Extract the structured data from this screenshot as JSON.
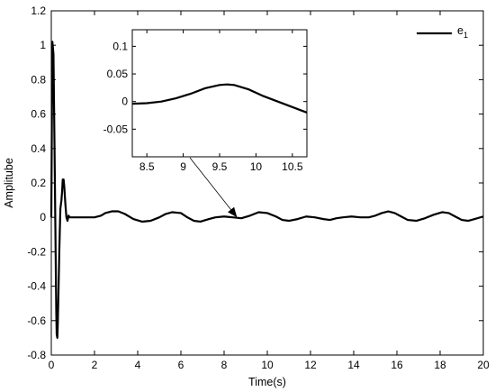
{
  "chart_data": {
    "type": "line",
    "xlabel": "Time(s)",
    "ylabel": "Amplitube",
    "xlim": [
      0,
      20
    ],
    "ylim": [
      -0.8,
      1.2
    ],
    "x_ticks": [
      "0",
      "2",
      "4",
      "6",
      "8",
      "10",
      "12",
      "14",
      "16",
      "18",
      "20"
    ],
    "y_ticks": [
      "-0.8",
      "-0.6",
      "-0.4",
      "-0.2",
      "0",
      "0.2",
      "0.4",
      "0.6",
      "0.8",
      "1",
      "1.2"
    ],
    "grid": false,
    "legend_placement": "top-right",
    "line_color": "#000000",
    "series": [
      {
        "name": "e1",
        "legend_base": "e",
        "legend_sub": "1",
        "x": [
          0,
          0.05,
          0.1,
          0.15,
          0.2,
          0.23,
          0.25,
          0.28,
          0.3,
          0.33,
          0.37,
          0.42,
          0.47,
          0.5,
          0.53,
          0.57,
          0.6,
          0.65,
          0.7,
          0.75,
          0.8,
          0.85,
          1.0,
          1.5,
          2.0,
          2.3,
          2.5,
          2.8,
          3.1,
          3.4,
          3.8,
          4.2,
          4.6,
          5.0,
          5.3,
          5.6,
          6.0,
          6.3,
          6.6,
          6.9,
          7.3,
          7.6,
          8.0,
          8.4,
          8.8,
          9.2,
          9.6,
          10.0,
          10.4,
          10.7,
          11.0,
          11.4,
          11.8,
          12.2,
          12.6,
          12.9,
          13.2,
          13.5,
          13.9,
          14.3,
          14.7,
          15.0,
          15.3,
          15.6,
          15.9,
          16.2,
          16.5,
          16.9,
          17.3,
          17.7,
          18.1,
          18.4,
          18.7,
          19.0,
          19.3,
          19.6,
          20.0
        ],
        "y": [
          0.0,
          1.02,
          0.95,
          0.4,
          -0.2,
          -0.55,
          -0.68,
          -0.7,
          -0.62,
          -0.45,
          -0.2,
          0.05,
          0.1,
          0.15,
          0.22,
          0.22,
          0.18,
          0.08,
          0.0,
          -0.02,
          0.01,
          0.0,
          0.0,
          0.0,
          0.0,
          0.01,
          0.025,
          0.035,
          0.035,
          0.02,
          -0.01,
          -0.025,
          -0.02,
          0.0,
          0.02,
          0.03,
          0.025,
          0.0,
          -0.02,
          -0.025,
          -0.01,
          0.0,
          0.005,
          0.0,
          -0.005,
          0.01,
          0.03,
          0.025,
          0.005,
          -0.015,
          -0.02,
          -0.01,
          0.005,
          0.0,
          -0.01,
          -0.015,
          -0.005,
          0.0,
          0.005,
          0.0,
          0.0,
          0.01,
          0.025,
          0.035,
          0.025,
          0.005,
          -0.015,
          -0.02,
          -0.005,
          0.015,
          0.03,
          0.025,
          0.005,
          -0.015,
          -0.02,
          -0.01,
          0.005
        ]
      }
    ],
    "inset": {
      "xlim": [
        8.3,
        10.7
      ],
      "ylim": [
        -0.1,
        0.13
      ],
      "x_ticks": [
        "8.5",
        "9",
        "9.5",
        "10",
        "10.5"
      ],
      "x_tick_values": [
        8.5,
        9,
        9.5,
        10,
        10.5
      ],
      "y_ticks": [
        "-0.05",
        "0",
        "0.05",
        "0.1"
      ],
      "y_tick_values": [
        -0.05,
        0,
        0.05,
        0.1
      ],
      "x": [
        8.3,
        8.5,
        8.7,
        8.9,
        9.1,
        9.3,
        9.5,
        9.6,
        9.7,
        9.9,
        10.1,
        10.3,
        10.5,
        10.7
      ],
      "y": [
        -0.004,
        -0.003,
        0.0,
        0.006,
        0.014,
        0.024,
        0.03,
        0.031,
        0.03,
        0.022,
        0.01,
        0.0,
        -0.01,
        -0.02
      ],
      "arrow_target": [
        8.6,
        0.0
      ]
    }
  }
}
